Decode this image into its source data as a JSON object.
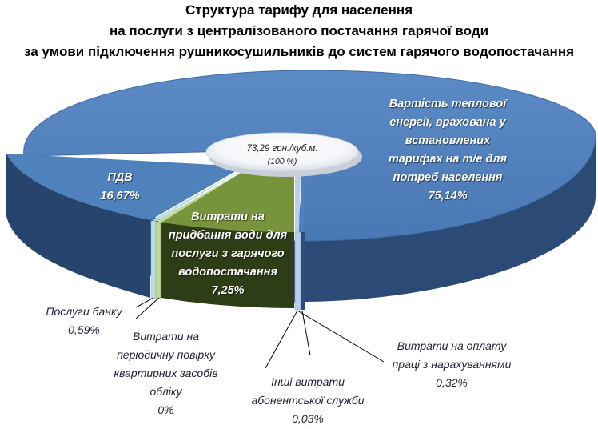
{
  "title": {
    "line1": "Структура тарифу для населення",
    "line2": "на послуги з централізованого постачання гарячої води",
    "line3": "за умови підключення рушникосушильників до систем гарячого водопостачання"
  },
  "center": {
    "value": "73,29  грн./куб.м.",
    "percent": "(100 %)"
  },
  "chart_data": {
    "type": "pie",
    "title": "Структура тарифу для населення на послуги з централізованого постачання гарячої води за умови підключення рушникосушильників до систем гарячого водопостачання",
    "total": "73,29 грн./куб.м. (100 %)",
    "slices": [
      {
        "label": "Вартість теплової енергії, врахована у встановлених тарифах на т/е для потреб населення",
        "value": 75.14,
        "display": "75,14%",
        "color": "#4f81bd"
      },
      {
        "label": "Витрати на оплату праці з нарахуваннями",
        "value": 0.32,
        "display": "0,32%",
        "color": "#b9cfe8"
      },
      {
        "label": "Інші витрати абонентської служби",
        "value": 0.03,
        "display": "0,03%",
        "color": "#4f81bd"
      },
      {
        "label": "Витрати на придбання води для послуги з гарячого водопостачання",
        "value": 7.25,
        "display": "7,25%",
        "color": "#77933c"
      },
      {
        "label": "Витрати на періодичну повірку квартирних засобів обліку",
        "value": 0,
        "display": "0%",
        "color": "#c3d69b"
      },
      {
        "label": "Послуги банку",
        "value": 0.59,
        "display": "0,59%",
        "color": "#b7dee8"
      },
      {
        "label": "ПДВ",
        "value": 16.67,
        "display": "16,67%",
        "color": "#4f81bd"
      }
    ]
  },
  "labels": {
    "energy": {
      "l1": "Вартість теплової",
      "l2": "енергії, врахована у",
      "l3": "встановлених",
      "l4": "тарифах на т/е для",
      "l5": "потреб населення",
      "pct": "75,14%"
    },
    "vat": {
      "l1": "ПДВ",
      "pct": "16,67%"
    },
    "water": {
      "l1": "Витрати на",
      "l2": "придбання води для",
      "l3": "послуги з гарячого",
      "l4": "водопостачання",
      "pct": "7,25%"
    },
    "bank": {
      "l1": "Послуги банку",
      "pct": "0,59%"
    },
    "meters": {
      "l1": "Витрати на",
      "l2": "періодичну повірку",
      "l3": "квартирних засобів",
      "l4": "обліку",
      "pct": "0%"
    },
    "other": {
      "l1": "Інші витрати",
      "l2": "абонентської служби",
      "pct": "0,03%"
    },
    "labor": {
      "l1": "Витрати на оплату",
      "l2": "праці з нарахуваннями",
      "pct": "0,32%"
    }
  }
}
